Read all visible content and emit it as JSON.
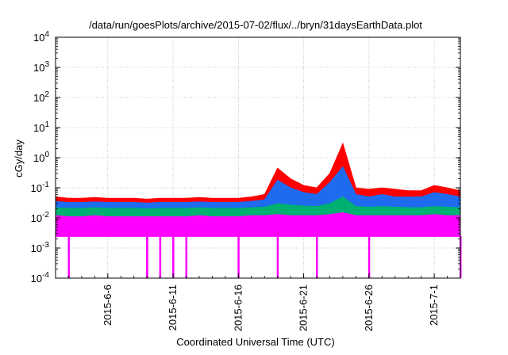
{
  "chart_data": {
    "type": "area",
    "title": "/data/run/goesPlots/archive/2015-07-02/flux/../bryn/31daysEarthData.plot",
    "xlabel": "Coordinated Universal Time (UTC)",
    "ylabel": "cGy/day",
    "y_scale": "log",
    "ylim": [
      0.0001,
      10000
    ],
    "xlim": [
      "2015-06-02",
      "2015-07-03"
    ],
    "grid": true,
    "legend": "none",
    "y_ticks": [
      {
        "base": "10",
        "exp": "-4"
      },
      {
        "base": "10",
        "exp": "-3"
      },
      {
        "base": "10",
        "exp": "-2"
      },
      {
        "base": "10",
        "exp": "-1"
      },
      {
        "base": "10",
        "exp": "0"
      },
      {
        "base": "10",
        "exp": "1"
      },
      {
        "base": "10",
        "exp": "2"
      },
      {
        "base": "10",
        "exp": "3"
      },
      {
        "base": "10",
        "exp": "4"
      }
    ],
    "x_ticks": [
      {
        "date": "2015-06-06",
        "label": "2015-6-6"
      },
      {
        "date": "2015-06-11",
        "label": "2015-6-11"
      },
      {
        "date": "2015-06-16",
        "label": "2015-6-16"
      },
      {
        "date": "2015-06-21",
        "label": "2015-6-21"
      },
      {
        "date": "2015-06-26",
        "label": "2015-6-26"
      },
      {
        "date": "2015-07-01",
        "label": "2015-7-1"
      }
    ],
    "x": [
      "2015-06-02",
      "2015-06-03",
      "2015-06-04",
      "2015-06-05",
      "2015-06-06",
      "2015-06-07",
      "2015-06-08",
      "2015-06-09",
      "2015-06-10",
      "2015-06-11",
      "2015-06-12",
      "2015-06-13",
      "2015-06-14",
      "2015-06-15",
      "2015-06-16",
      "2015-06-17",
      "2015-06-18",
      "2015-06-19",
      "2015-06-20",
      "2015-06-21",
      "2015-06-22",
      "2015-06-23",
      "2015-06-24",
      "2015-06-25",
      "2015-06-26",
      "2015-06-27",
      "2015-06-28",
      "2015-06-29",
      "2015-06-30",
      "2015-07-01",
      "2015-07-02",
      "2015-07-03"
    ],
    "series": [
      {
        "color": "#ff0000",
        "values": [
          0.05,
          0.045,
          0.045,
          0.048,
          0.045,
          0.045,
          0.045,
          0.042,
          0.045,
          0.045,
          0.045,
          0.048,
          0.045,
          0.045,
          0.045,
          0.05,
          0.06,
          0.45,
          0.2,
          0.12,
          0.1,
          0.3,
          3.0,
          0.1,
          0.09,
          0.1,
          0.09,
          0.08,
          0.08,
          0.12,
          0.1,
          0.08
        ]
      },
      {
        "color": "#1e6bf0",
        "values": [
          0.035,
          0.033,
          0.033,
          0.034,
          0.033,
          0.033,
          0.033,
          0.031,
          0.033,
          0.033,
          0.033,
          0.034,
          0.033,
          0.033,
          0.033,
          0.036,
          0.04,
          0.18,
          0.1,
          0.07,
          0.06,
          0.15,
          0.5,
          0.06,
          0.05,
          0.06,
          0.05,
          0.05,
          0.05,
          0.07,
          0.06,
          0.05
        ]
      },
      {
        "color": "#00b070",
        "values": [
          0.022,
          0.021,
          0.021,
          0.022,
          0.021,
          0.021,
          0.021,
          0.02,
          0.021,
          0.021,
          0.021,
          0.022,
          0.021,
          0.021,
          0.021,
          0.022,
          0.023,
          0.03,
          0.027,
          0.025,
          0.024,
          0.03,
          0.05,
          0.024,
          0.023,
          0.024,
          0.023,
          0.022,
          0.022,
          0.024,
          0.023,
          0.022
        ]
      },
      {
        "color": "#ff00ff",
        "values": [
          0.012,
          0.011,
          0.011,
          0.012,
          0.011,
          0.011,
          0.011,
          0.011,
          0.011,
          0.011,
          0.011,
          0.012,
          0.011,
          0.011,
          0.011,
          0.012,
          0.012,
          0.013,
          0.012,
          0.012,
          0.012,
          0.013,
          0.015,
          0.012,
          0.012,
          0.012,
          0.012,
          0.012,
          0.012,
          0.013,
          0.012,
          0.012
        ]
      }
    ],
    "baseline": 0.0025,
    "dropouts": [
      "2015-06-03",
      "2015-06-09",
      "2015-06-09",
      "2015-06-10",
      "2015-06-11",
      "2015-06-12",
      "2015-06-16",
      "2015-06-19",
      "2015-06-22",
      "2015-06-26",
      "2015-07-03"
    ]
  }
}
